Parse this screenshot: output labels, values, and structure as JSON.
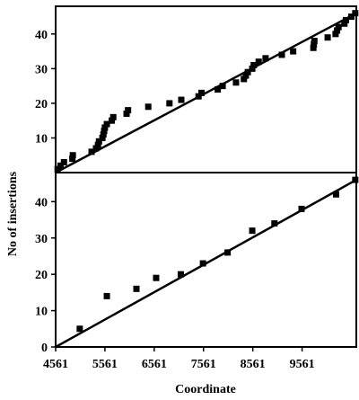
{
  "chart_data": {
    "type": "scatter",
    "ylabel": "No of insertions",
    "xlabel": "Coordinate",
    "xlim": [
      4561,
      10661
    ],
    "x_ticks": [
      4561,
      5561,
      6561,
      7561,
      8561,
      9561
    ],
    "x_tick_labels": [
      "4561",
      "5561",
      "6561",
      "7561",
      "8561",
      "9561"
    ],
    "panels": [
      {
        "ylim": [
          0,
          48
        ],
        "y_ticks": [
          10,
          20,
          30,
          40
        ],
        "y_tick_labels": [
          "10",
          "20",
          "30",
          "40"
        ],
        "fit_line": {
          "x": [
            4561,
            10661
          ],
          "y": [
            0,
            46
          ]
        },
        "points": [
          [
            4600,
            1
          ],
          [
            4660,
            2
          ],
          [
            4730,
            3
          ],
          [
            4900,
            4
          ],
          [
            4910,
            5
          ],
          [
            5290,
            6
          ],
          [
            5380,
            7
          ],
          [
            5420,
            8
          ],
          [
            5440,
            9
          ],
          [
            5510,
            10
          ],
          [
            5530,
            11
          ],
          [
            5545,
            12
          ],
          [
            5560,
            13
          ],
          [
            5600,
            14
          ],
          [
            5700,
            15
          ],
          [
            5730,
            16
          ],
          [
            6000,
            17
          ],
          [
            6030,
            18
          ],
          [
            6440,
            19
          ],
          [
            6870,
            20
          ],
          [
            7110,
            21
          ],
          [
            7460,
            22
          ],
          [
            7520,
            23
          ],
          [
            7850,
            24
          ],
          [
            7950,
            25
          ],
          [
            8220,
            26
          ],
          [
            8380,
            27
          ],
          [
            8420,
            28
          ],
          [
            8460,
            29
          ],
          [
            8550,
            30
          ],
          [
            8580,
            31
          ],
          [
            8680,
            32
          ],
          [
            8820,
            33
          ],
          [
            9150,
            34
          ],
          [
            9380,
            35
          ],
          [
            9790,
            36
          ],
          [
            9800,
            37
          ],
          [
            9810,
            38
          ],
          [
            10080,
            39
          ],
          [
            10240,
            40
          ],
          [
            10270,
            41
          ],
          [
            10300,
            42
          ],
          [
            10420,
            43
          ],
          [
            10450,
            44
          ],
          [
            10560,
            45
          ],
          [
            10640,
            46
          ]
        ]
      },
      {
        "ylim": [
          0,
          48
        ],
        "y_ticks": [
          0,
          10,
          20,
          30,
          40
        ],
        "y_tick_labels": [
          "0",
          "10",
          "20",
          "30",
          "40"
        ],
        "fit_line": {
          "x": [
            4561,
            10661
          ],
          "y": [
            0,
            46
          ]
        },
        "points": [
          [
            5050,
            5
          ],
          [
            5600,
            14
          ],
          [
            6200,
            16
          ],
          [
            6600,
            19
          ],
          [
            7100,
            20
          ],
          [
            7550,
            23
          ],
          [
            8050,
            26
          ],
          [
            8550,
            32
          ],
          [
            9000,
            34
          ],
          [
            9550,
            38
          ],
          [
            10250,
            42
          ],
          [
            10640,
            46
          ]
        ]
      }
    ]
  }
}
